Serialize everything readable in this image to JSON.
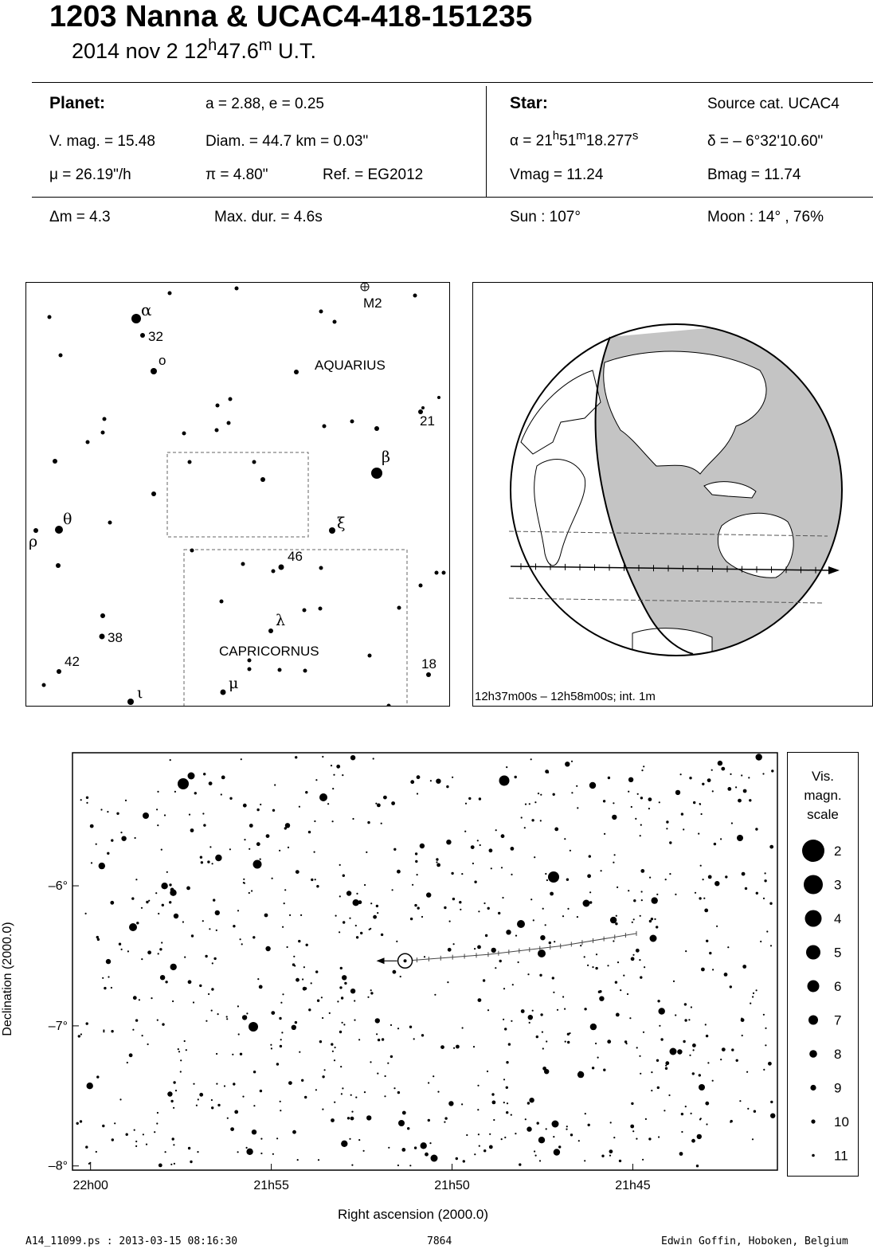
{
  "header": {
    "title": "1203 Nanna  &  UCAC4-418-151235",
    "date": "2014 nov  2  12",
    "hours_sup": "h",
    "minutes": "47.6",
    "minutes_sup": "m",
    "ut": " U.T."
  },
  "planet": {
    "heading": "Planet:",
    "orbit": "a = 2.88, e = 0.25",
    "vmag": "V. mag. = 15.48",
    "diam": "Diam. = 44.7 km = 0.03\"",
    "mu": "μ =  26.19\"/h",
    "pi": "π =  4.80\"",
    "ref": "Ref. = EG2012"
  },
  "star": {
    "heading": "Star:",
    "source": "Source cat.  UCAC4",
    "alpha_prefix": "α = 21",
    "alpha_h": "h",
    "alpha_min": "51",
    "alpha_m": "m",
    "alpha_sec": "18.277",
    "alpha_s": "s",
    "delta": "δ = – 6°32'10.60\"",
    "vmag": "Vmag = 11.24",
    "bmag": "Bmag = 11.74"
  },
  "event": {
    "dm": "Δm = 4.3",
    "maxdur": "Max. dur. = 4.6s",
    "sun": "Sun : 107°",
    "moon": "Moon :  14° , 76%"
  },
  "finder": {
    "labels": {
      "alpha": "α",
      "n32": "32",
      "omicron": "o",
      "m2": "M2",
      "aquarius": "AQUARIUS",
      "n21": "21",
      "beta": "β",
      "theta": "θ",
      "rho": "ρ",
      "xi": "ξ",
      "n46": "46",
      "lambda": "λ",
      "n38": "38",
      "n42": "42",
      "capricornus": "CAPRICORNUS",
      "n18": "18",
      "mu": "μ",
      "iota": "ι"
    }
  },
  "globe": {
    "caption": "12h37m00s – 12h58m00s; int.  1m"
  },
  "chart_data": {
    "type": "scatter",
    "xlabel": "Right ascension (2000.0)",
    "ylabel": "Declination (2000.0)",
    "x_ticks": [
      "22h00",
      "21h55",
      "21h50",
      "21h45"
    ],
    "y_ticks": [
      "-6°",
      "-7°",
      "-8°"
    ],
    "x_tick_values_min": [
      1320,
      1315,
      1310,
      1305
    ],
    "y_tick_values_deg": [
      -6,
      -7,
      -8
    ],
    "xlim_min": [
      1320.5,
      1301
    ],
    "ylim_deg": [
      -8.03,
      -5.05
    ],
    "target": {
      "ra_min": 1311.3,
      "dec": -6.536
    },
    "path": [
      [
        1304.9,
        -6.34
      ],
      [
        1307.0,
        -6.43
      ],
      [
        1309.0,
        -6.49
      ],
      [
        1311.3,
        -6.536
      ]
    ]
  },
  "legend": {
    "title1": "Vis.",
    "title2": "magn.",
    "title3": "scale",
    "items": [
      "2",
      "3",
      "4",
      "5",
      "6",
      "7",
      "8",
      "9",
      "10",
      "11"
    ]
  },
  "footer": {
    "left": "A14_11099.ps : 2013-03-15 08:16:30",
    "mid": "7864",
    "right": "Edwin Goffin, Hoboken, Belgium"
  }
}
